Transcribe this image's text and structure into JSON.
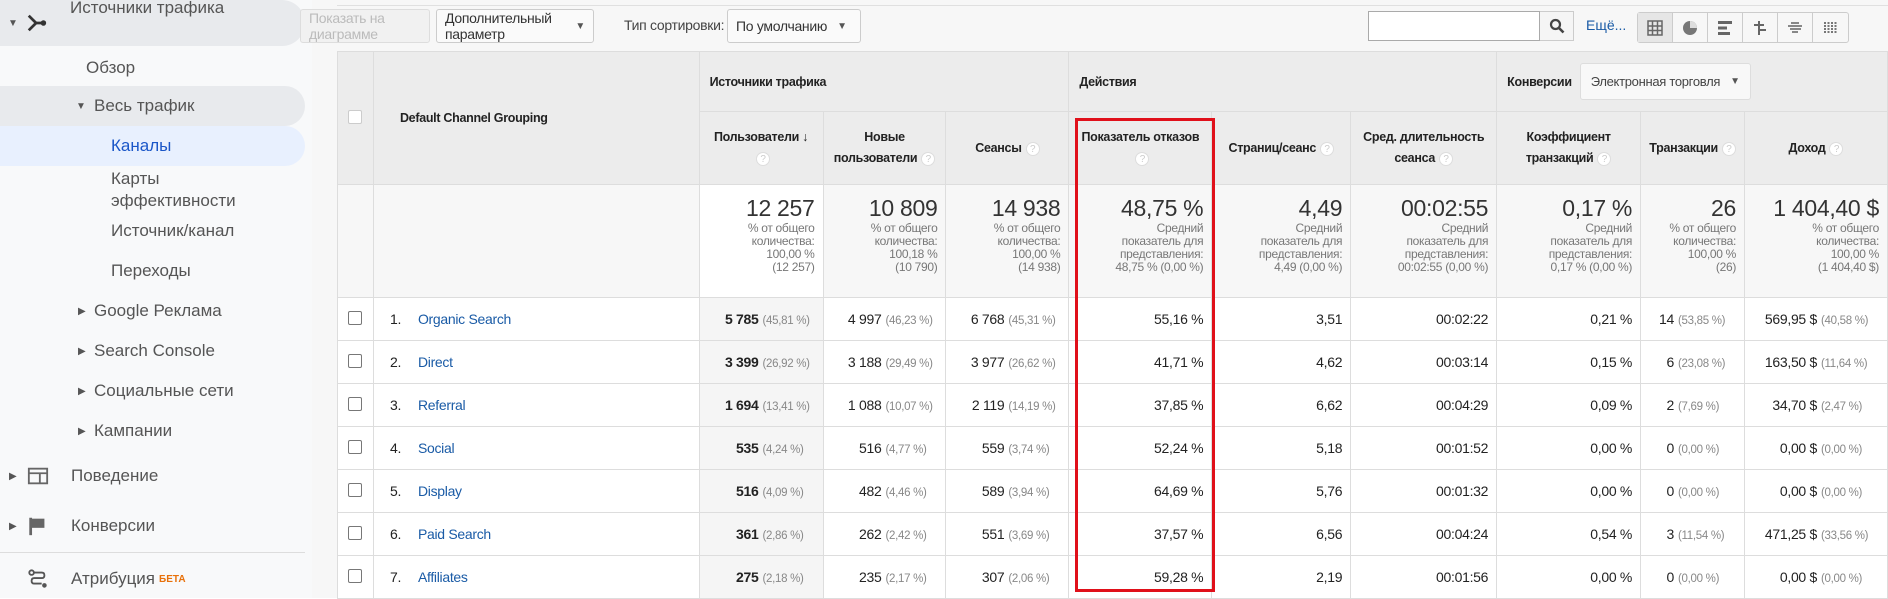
{
  "sidebar": {
    "items": [
      {
        "label": "Источники трафика",
        "icon": "acquisition-icon"
      },
      {
        "label": "Обзор"
      },
      {
        "label": "Весь трафик"
      },
      {
        "label": "Каналы"
      },
      {
        "label": "Карты эффективности"
      },
      {
        "label": "Источник/канал"
      },
      {
        "label": "Переходы"
      },
      {
        "label": "Google Реклама"
      },
      {
        "label": "Search Console"
      },
      {
        "label": "Социальные сети"
      },
      {
        "label": "Кампании"
      },
      {
        "label": "Поведение",
        "icon": "behavior-icon"
      },
      {
        "label": "Конверсии",
        "icon": "flag-icon"
      },
      {
        "label": "Атрибуция",
        "icon": "attribution-icon",
        "badge": "БЕТА"
      }
    ]
  },
  "toolbar": {
    "plot_rows": "Показать на диаграмме",
    "secondary_dimension": "Дополнительный параметр",
    "sort_label": "Тип сортировки:",
    "sort_value": "По умолчанию",
    "search_value": "",
    "more": "Ещё...",
    "views": [
      "table-view-icon",
      "pie-view-icon",
      "performance-view-icon",
      "comparison-view-icon",
      "term-cloud-icon",
      "pivot-view-icon"
    ]
  },
  "table": {
    "dimension_header": "Default Channel Grouping",
    "groups": {
      "acquisition": "Источники трафика",
      "behavior": "Действия",
      "conversions": "Конверсии",
      "conversions_select": "Электронная торговля"
    },
    "columns": [
      "Пользователи",
      "Новые пользователи",
      "Сеансы",
      "Показатель отказов",
      "Страниц/сеанс",
      "Сред. длительность сеанса",
      "Коэффициент транзакций",
      "Транзакции",
      "Доход"
    ],
    "totals": [
      {
        "value": "12 257",
        "l1": "% от общего",
        "l2": "количества:",
        "l3": "100,00 %",
        "l4": "(12 257)"
      },
      {
        "value": "10 809",
        "l1": "% от общего",
        "l2": "количества:",
        "l3": "100,18 %",
        "l4": "(10 790)"
      },
      {
        "value": "14 938",
        "l1": "% от общего",
        "l2": "количества:",
        "l3": "100,00 %",
        "l4": "(14 938)"
      },
      {
        "value": "48,75 %",
        "l1": "Средний",
        "l2": "показатель для",
        "l3": "представления:",
        "l4": "48,75 % (0,00 %)"
      },
      {
        "value": "4,49",
        "l1": "Средний",
        "l2": "показатель для",
        "l3": "представления:",
        "l4": "4,49 (0,00 %)"
      },
      {
        "value": "00:02:55",
        "l1": "Средний",
        "l2": "показатель для",
        "l3": "представления:",
        "l4": "00:02:55 (0,00 %)"
      },
      {
        "value": "0,17 %",
        "l1": "Средний",
        "l2": "показатель для",
        "l3": "представления:",
        "l4": "0,17 % (0,00 %)"
      },
      {
        "value": "26",
        "l1": "% от общего",
        "l2": "количества:",
        "l3": "100,00 %",
        "l4": "(26)"
      },
      {
        "value": "1 404,40 $",
        "l1": "% от общего",
        "l2": "количества:",
        "l3": "100,00 %",
        "l4": "(1 404,40 $)"
      }
    ],
    "rows": [
      {
        "n": "1.",
        "channel": "Organic Search",
        "cells": [
          [
            "5 785",
            "(45,81 %)"
          ],
          [
            "4 997",
            "(46,23 %)"
          ],
          [
            "6 768",
            "(45,31 %)"
          ],
          [
            "55,16 %"
          ],
          [
            "3,51"
          ],
          [
            "00:02:22"
          ],
          [
            "0,21 %"
          ],
          [
            "14",
            "(53,85 %)"
          ],
          [
            "569,95 $",
            "(40,58 %)"
          ]
        ]
      },
      {
        "n": "2.",
        "channel": "Direct",
        "cells": [
          [
            "3 399",
            "(26,92 %)"
          ],
          [
            "3 188",
            "(29,49 %)"
          ],
          [
            "3 977",
            "(26,62 %)"
          ],
          [
            "41,71 %"
          ],
          [
            "4,62"
          ],
          [
            "00:03:14"
          ],
          [
            "0,15 %"
          ],
          [
            "6",
            "(23,08 %)"
          ],
          [
            "163,50 $",
            "(11,64 %)"
          ]
        ]
      },
      {
        "n": "3.",
        "channel": "Referral",
        "cells": [
          [
            "1 694",
            "(13,41 %)"
          ],
          [
            "1 088",
            "(10,07 %)"
          ],
          [
            "2 119",
            "(14,19 %)"
          ],
          [
            "37,85 %"
          ],
          [
            "6,62"
          ],
          [
            "00:04:29"
          ],
          [
            "0,09 %"
          ],
          [
            "2",
            "(7,69 %)"
          ],
          [
            "34,70 $",
            "(2,47 %)"
          ]
        ]
      },
      {
        "n": "4.",
        "channel": "Social",
        "cells": [
          [
            "535",
            "(4,24 %)"
          ],
          [
            "516",
            "(4,77 %)"
          ],
          [
            "559",
            "(3,74 %)"
          ],
          [
            "52,24 %"
          ],
          [
            "5,18"
          ],
          [
            "00:01:52"
          ],
          [
            "0,00 %"
          ],
          [
            "0",
            "(0,00 %)"
          ],
          [
            "0,00 $",
            "(0,00 %)"
          ]
        ]
      },
      {
        "n": "5.",
        "channel": "Display",
        "cells": [
          [
            "516",
            "(4,09 %)"
          ],
          [
            "482",
            "(4,46 %)"
          ],
          [
            "589",
            "(3,94 %)"
          ],
          [
            "64,69 %"
          ],
          [
            "5,76"
          ],
          [
            "00:01:32"
          ],
          [
            "0,00 %"
          ],
          [
            "0",
            "(0,00 %)"
          ],
          [
            "0,00 $",
            "(0,00 %)"
          ]
        ]
      },
      {
        "n": "6.",
        "channel": "Paid Search",
        "cells": [
          [
            "361",
            "(2,86 %)"
          ],
          [
            "262",
            "(2,42 %)"
          ],
          [
            "551",
            "(3,69 %)"
          ],
          [
            "37,57 %"
          ],
          [
            "6,56"
          ],
          [
            "00:04:24"
          ],
          [
            "0,54 %"
          ],
          [
            "3",
            "(11,54 %)"
          ],
          [
            "471,25 $",
            "(33,56 %)"
          ]
        ]
      },
      {
        "n": "7.",
        "channel": "Affiliates",
        "cells": [
          [
            "275",
            "(2,18 %)"
          ],
          [
            "235",
            "(2,17 %)"
          ],
          [
            "307",
            "(2,06 %)"
          ],
          [
            "59,28 %"
          ],
          [
            "2,19"
          ],
          [
            "00:01:56"
          ],
          [
            "0,00 %"
          ],
          [
            "0",
            "(0,00 %)"
          ],
          [
            "0,00 $",
            "(0,00 %)"
          ]
        ]
      }
    ]
  },
  "colors": {
    "accent": "#1a5ba6",
    "highlight_box": "#e0101a",
    "active_nav": "#1a56c8",
    "beta": "#e8710a"
  }
}
